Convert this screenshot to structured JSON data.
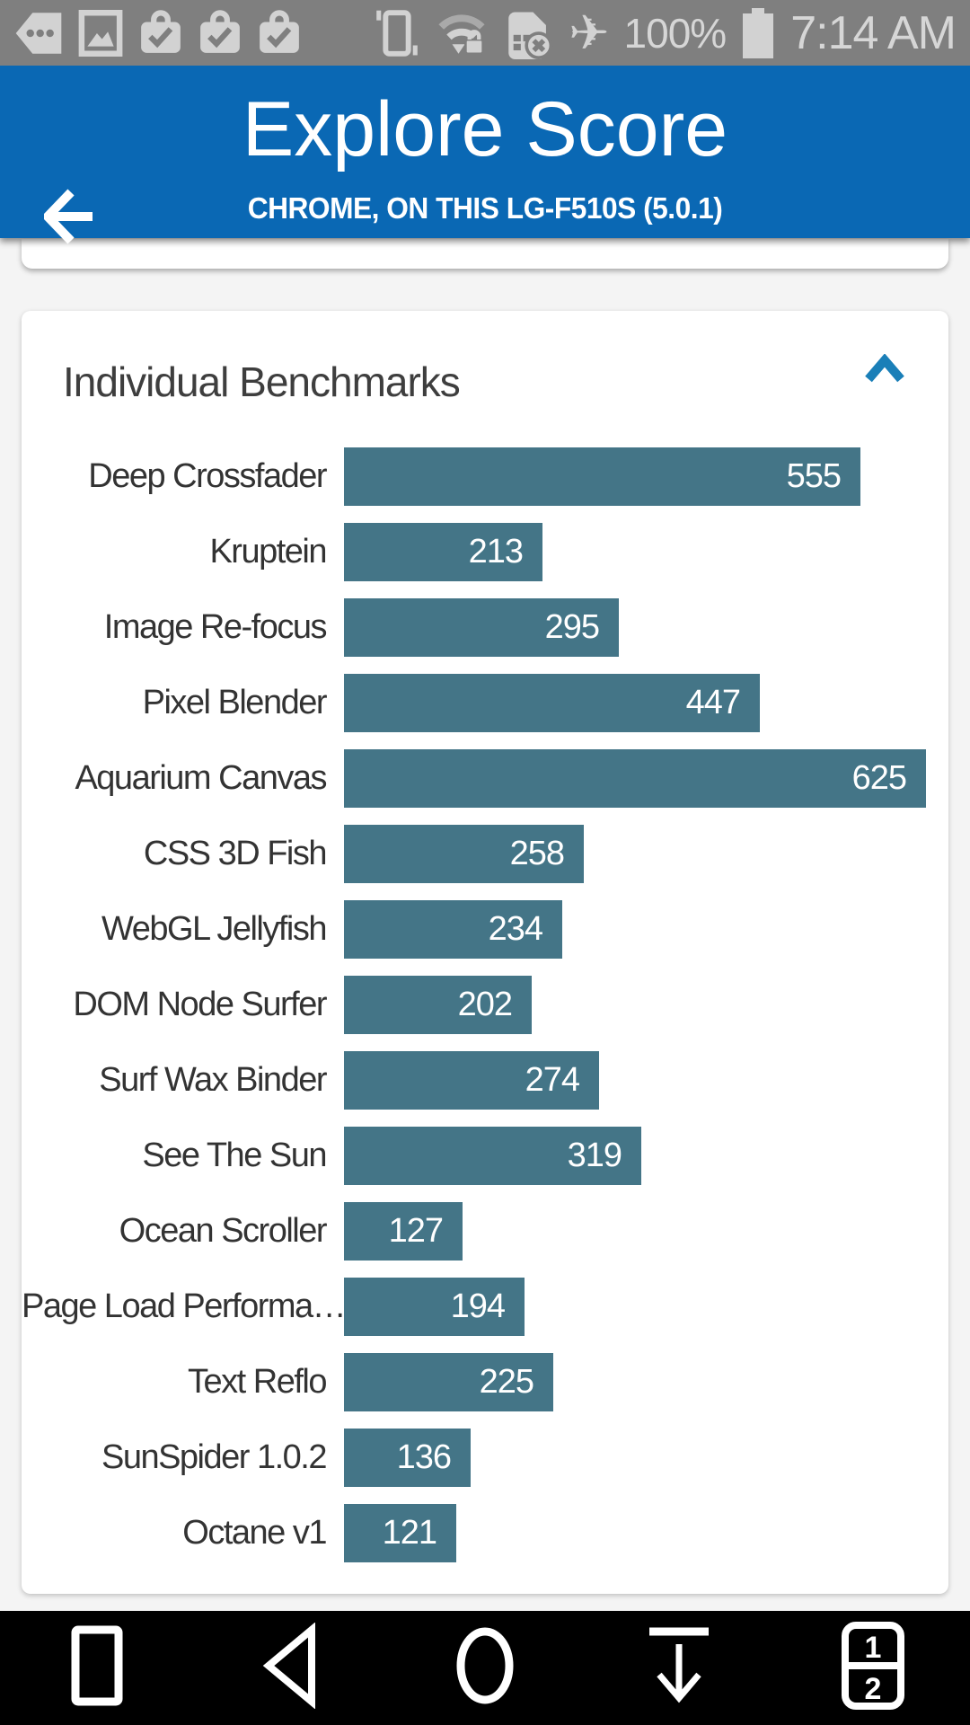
{
  "status_bar": {
    "time": "7:14 AM",
    "battery_percent": "100%",
    "icons": [
      "tag-ellipsis",
      "screenshot",
      "task-done",
      "task-done",
      "task-done",
      "vibrate",
      "wifi-secured",
      "sim-error",
      "airplane",
      "battery-full"
    ]
  },
  "app_bar": {
    "title": "Explore Score",
    "subtitle": "CHROME, ON THIS LG-F510S (5.0.1)",
    "back_icon": "arrow-left"
  },
  "card": {
    "title": "Individual Benchmarks",
    "collapse_icon": "chevron-up"
  },
  "chart_data": {
    "type": "bar",
    "orientation": "horizontal",
    "title": "Individual Benchmarks",
    "categories": [
      "Deep Crossfader",
      "Kruptein",
      "Image Re-focus",
      "Pixel Blender",
      "Aquarium Canvas",
      "CSS 3D Fish",
      "WebGL Jellyfish",
      "DOM Node Surfer",
      "Surf Wax Binder",
      "See The Sun",
      "Ocean Scroller",
      "Page Load Performa…",
      "Text Reflo",
      "SunSpider 1.0.2",
      "Octane v1"
    ],
    "values": [
      555,
      213,
      295,
      447,
      625,
      258,
      234,
      202,
      274,
      319,
      127,
      194,
      225,
      136,
      121
    ],
    "xlim": [
      0,
      625
    ],
    "bar_color": "#447587",
    "value_label_position": "inside-right",
    "grid": false,
    "legend": false
  },
  "nav_bar": {
    "icons": [
      "recent-apps",
      "back",
      "home",
      "pulldown",
      "dual-window"
    ],
    "window1_label": "1",
    "window2_label": "2"
  },
  "colors": {
    "app_bar": "#0a68b4",
    "bar_fill": "#447587",
    "chevron": "#1a7fb8",
    "status_bar_bg": "#7f7f7f",
    "status_icon": "#d2d2d2",
    "nav_bar_bg": "#000000",
    "page_bg": "#f4f4f4",
    "card_bg": "#ffffff"
  }
}
